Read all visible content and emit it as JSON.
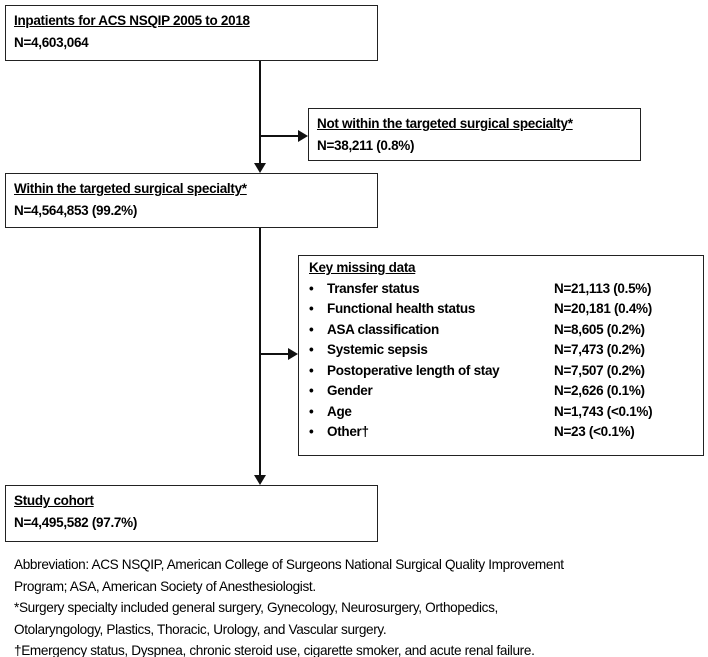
{
  "boxes": {
    "initial": {
      "title": "Inpatients for ACS NSQIP 2005 to 2018",
      "count": "N=4,603,064"
    },
    "excluded_specialty": {
      "title": "Not within the targeted surgical specialty*",
      "count": "N=38,211 (0.8%)"
    },
    "within_specialty": {
      "title": "Within the targeted surgical specialty*",
      "count": "N=4,564,853 (99.2%)"
    },
    "missing": {
      "title": "Key missing data",
      "bullet": "•",
      "items": [
        {
          "label": "Transfer status",
          "value": "N=21,113 (0.5%)"
        },
        {
          "label": "Functional health status",
          "value": "N=20,181 (0.4%)"
        },
        {
          "label": "ASA classification",
          "value": "N=8,605 (0.2%)"
        },
        {
          "label": "Systemic sepsis",
          "value": "N=7,473 (0.2%)"
        },
        {
          "label": "Postoperative length of stay",
          "value": "N=7,507 (0.2%)"
        },
        {
          "label": "Gender",
          "value": "N=2,626 (0.1%)"
        },
        {
          "label": "Age",
          "value": "N=1,743 (<0.1%)"
        },
        {
          "label": "Other†",
          "value": "N=23 (<0.1%)"
        }
      ]
    },
    "cohort": {
      "title": "Study cohort",
      "count": "N=4,495,582 (97.7%)"
    }
  },
  "notes": [
    "Abbreviation: ACS NSQIP, American College of Surgeons National Surgical Quality Improvement",
    "Program; ASA, American Society of Anesthesiologist.",
    "*Surgery specialty included general surgery, Gynecology, Neurosurgery, Orthopedics,",
    "Otolaryngology, Plastics, Thoracic, Urology, and Vascular surgery.",
    "†Emergency status, Dyspnea, chronic steroid use, cigarette smoker, and acute renal failure."
  ]
}
